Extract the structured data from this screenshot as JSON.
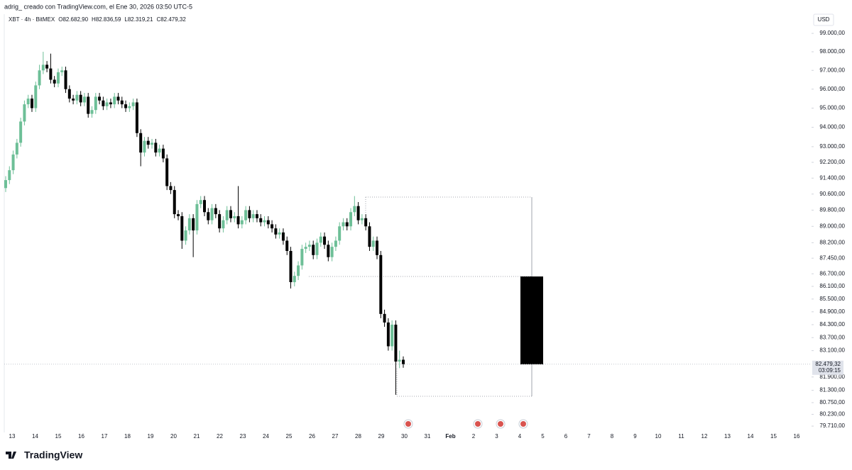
{
  "header": {
    "text": "adrig_ creado con TradingView.com, el Ene 30, 2026 03:50 UTC-5"
  },
  "footer": {
    "logo": "TradingView"
  },
  "chart_data": {
    "type": "candlestick",
    "legend": {
      "symbol": "XBT · 4h · BitMEX",
      "fields": [
        {
          "key": "O",
          "value": "82.682,90"
        },
        {
          "key": "H",
          "value": "82.836,59"
        },
        {
          "key": "L",
          "value": "82.319,21"
        },
        {
          "key": "C",
          "value": "82.479,32"
        }
      ]
    },
    "currency": "USD",
    "price_label": "82.479,32",
    "countdown": "03:09:15",
    "up_color": "#6dbf97",
    "down_color": "#000000",
    "log_scale": true,
    "ylim": [
      79370,
      100290
    ],
    "yticks": [
      {
        "value": 99000,
        "label": "99.000,00"
      },
      {
        "value": 98000,
        "label": "98.000,00"
      },
      {
        "value": 97000,
        "label": "97.000,00"
      },
      {
        "value": 96000,
        "label": "96.000,00"
      },
      {
        "value": 95000,
        "label": "95.000,00"
      },
      {
        "value": 94000,
        "label": "94.000,00"
      },
      {
        "value": 93000,
        "label": "93.000,00"
      },
      {
        "value": 92200,
        "label": "92.200,00"
      },
      {
        "value": 91400,
        "label": "91.400,00"
      },
      {
        "value": 90600,
        "label": "90.600,00"
      },
      {
        "value": 89800,
        "label": "89.800,00"
      },
      {
        "value": 89000,
        "label": "89.000,00"
      },
      {
        "value": 88200,
        "label": "88.200,00"
      },
      {
        "value": 87450,
        "label": "87.450,00"
      },
      {
        "value": 86700,
        "label": "86.700,00"
      },
      {
        "value": 86100,
        "label": "86.100,00"
      },
      {
        "value": 85500,
        "label": "85.500,00"
      },
      {
        "value": 84900,
        "label": "84.900,00"
      },
      {
        "value": 84300,
        "label": "84.300,00"
      },
      {
        "value": 83700,
        "label": "83.700,00"
      },
      {
        "value": 83100,
        "label": "83.100,00"
      },
      {
        "value": 81900,
        "label": "81.900,00"
      },
      {
        "value": 81300,
        "label": "81.300,00"
      },
      {
        "value": 80750,
        "label": "80.750,00"
      },
      {
        "value": 80230,
        "label": "80.230,00"
      },
      {
        "value": 79710,
        "label": "79.710,00"
      }
    ],
    "xticks": [
      {
        "value": "2026-01-13",
        "label": "13"
      },
      {
        "value": "2026-01-14",
        "label": "14"
      },
      {
        "value": "2026-01-15",
        "label": "15"
      },
      {
        "value": "2026-01-16",
        "label": "16"
      },
      {
        "value": "2026-01-17",
        "label": "17"
      },
      {
        "value": "2026-01-18",
        "label": "18"
      },
      {
        "value": "2026-01-19",
        "label": "19"
      },
      {
        "value": "2026-01-20",
        "label": "20"
      },
      {
        "value": "2026-01-21",
        "label": "21"
      },
      {
        "value": "2026-01-22",
        "label": "22"
      },
      {
        "value": "2026-01-23",
        "label": "23"
      },
      {
        "value": "2026-01-24",
        "label": "24"
      },
      {
        "value": "2026-01-25",
        "label": "25"
      },
      {
        "value": "2026-01-26",
        "label": "26"
      },
      {
        "value": "2026-01-27",
        "label": "27"
      },
      {
        "value": "2026-01-28",
        "label": "28"
      },
      {
        "value": "2026-01-29",
        "label": "29"
      },
      {
        "value": "2026-01-30",
        "label": "30"
      },
      {
        "value": "2026-01-31",
        "label": "31"
      },
      {
        "value": "2026-02-01",
        "label": "Feb"
      },
      {
        "value": "2026-02-02",
        "label": "2"
      },
      {
        "value": "2026-02-03",
        "label": "3"
      },
      {
        "value": "2026-02-04",
        "label": "4"
      },
      {
        "value": "2026-02-05",
        "label": "5"
      },
      {
        "value": "2026-02-06",
        "label": "6"
      },
      {
        "value": "2026-02-07",
        "label": "7"
      },
      {
        "value": "2026-02-08",
        "label": "8"
      },
      {
        "value": "2026-02-09",
        "label": "9"
      },
      {
        "value": "2026-02-10",
        "label": "10"
      },
      {
        "value": "2026-02-11",
        "label": "11"
      },
      {
        "value": "2026-02-12",
        "label": "12"
      },
      {
        "value": "2026-02-13",
        "label": "13"
      },
      {
        "value": "2026-02-14",
        "label": "14"
      },
      {
        "value": "2026-02-15",
        "label": "15"
      },
      {
        "value": "2026-02-16",
        "label": "16"
      }
    ],
    "open": [
      90900,
      91300,
      91800,
      92600,
      93200,
      94300,
      95200,
      95500,
      95000,
      96200,
      97000,
      97300,
      97100,
      96500,
      96300,
      96900,
      97000,
      96000,
      95500,
      95400,
      95700,
      95300,
      95600,
      94700,
      94900,
      95600,
      95400,
      95100,
      95300,
      95200,
      95600,
      95400,
      95200,
      95000,
      95100,
      95300,
      93700,
      92700,
      93300,
      93100,
      93200,
      92700,
      92900,
      92400,
      91000,
      90800,
      89600,
      89500,
      88300,
      88800,
      89400,
      88800,
      90100,
      90300,
      89700,
      89300,
      89900,
      89600,
      88900,
      89300,
      89800,
      89400,
      89500,
      89100,
      89300,
      89800,
      89400,
      89600,
      89400,
      89200,
      89300,
      89100,
      88900,
      88600,
      88700,
      88300,
      87800,
      86300,
      86600,
      87100,
      87900,
      88000,
      88100,
      87600,
      88200,
      88500,
      88100,
      87500,
      88000,
      88300,
      89000,
      89200,
      89000,
      89700,
      90000,
      89300,
      89400,
      89000,
      88000,
      88300,
      87600,
      84800,
      84400,
      83300,
      84300,
      82600,
      82682.9
    ],
    "high": [
      91500,
      92000,
      92800,
      93400,
      94500,
      95400,
      95700,
      95700,
      96400,
      97300,
      98000,
      97500,
      97900,
      96700,
      97100,
      97200,
      97200,
      96200,
      95700,
      95900,
      95900,
      95800,
      95800,
      95100,
      95800,
      95800,
      95600,
      95500,
      95500,
      95800,
      95800,
      95600,
      95400,
      95300,
      95500,
      95500,
      93900,
      93500,
      93500,
      93400,
      93400,
      93100,
      93100,
      92600,
      91200,
      91000,
      89800,
      89700,
      89000,
      89600,
      89600,
      90300,
      90500,
      90500,
      89900,
      90100,
      90100,
      89800,
      89500,
      90000,
      90000,
      89700,
      91000,
      89500,
      90000,
      90000,
      89800,
      89800,
      89600,
      89500,
      89500,
      89300,
      89100,
      88900,
      88900,
      88500,
      88000,
      86800,
      87300,
      88100,
      88200,
      88300,
      88300,
      88400,
      88700,
      88700,
      88300,
      88200,
      88500,
      89200,
      89400,
      89400,
      89900,
      90500,
      90200,
      89600,
      89600,
      89200,
      88500,
      88500,
      87800,
      85000,
      84600,
      84500,
      84500,
      83100,
      82836.59
    ],
    "low": [
      90700,
      91100,
      91600,
      92400,
      93000,
      94100,
      95000,
      94800,
      94800,
      96000,
      96800,
      96900,
      96300,
      96100,
      96100,
      96700,
      95800,
      95300,
      95200,
      95200,
      95100,
      95100,
      94500,
      94500,
      94700,
      95200,
      94900,
      94900,
      95000,
      95000,
      95200,
      95000,
      94800,
      94800,
      94900,
      93500,
      92000,
      92500,
      92900,
      92900,
      92500,
      92500,
      92200,
      90800,
      90600,
      89400,
      89300,
      87900,
      88100,
      88600,
      87500,
      88600,
      89900,
      89500,
      89100,
      89100,
      89400,
      88700,
      88700,
      89100,
      89200,
      89200,
      88900,
      88900,
      89100,
      89200,
      89200,
      89200,
      89000,
      89000,
      88900,
      88700,
      88400,
      88400,
      88100,
      87600,
      86000,
      86100,
      86400,
      86900,
      87700,
      87800,
      87400,
      87400,
      88000,
      87900,
      87300,
      87300,
      87800,
      88100,
      88800,
      88800,
      88800,
      89500,
      89100,
      89100,
      88800,
      87800,
      87800,
      87400,
      84600,
      84200,
      83100,
      83100,
      81100,
      82300,
      82319.21
    ],
    "close": [
      91300,
      91800,
      92600,
      93200,
      94300,
      95200,
      95500,
      95000,
      96200,
      97000,
      97300,
      97100,
      96500,
      96300,
      96900,
      97000,
      96000,
      95500,
      95400,
      95700,
      95300,
      95600,
      94700,
      94900,
      95600,
      95400,
      95100,
      95300,
      95200,
      95600,
      95400,
      95200,
      95000,
      95100,
      95300,
      93700,
      92700,
      93300,
      93100,
      93200,
      92700,
      92900,
      92400,
      91000,
      90800,
      89600,
      89500,
      88300,
      88800,
      89400,
      88800,
      90100,
      90300,
      89700,
      89300,
      89900,
      89600,
      88900,
      89300,
      89800,
      89400,
      89500,
      89100,
      89300,
      89800,
      89400,
      89600,
      89400,
      89200,
      89300,
      89100,
      88900,
      88600,
      88700,
      88300,
      87800,
      86300,
      86600,
      87100,
      87900,
      88000,
      88100,
      87600,
      88200,
      88500,
      88100,
      87500,
      88000,
      88300,
      89000,
      89200,
      89000,
      89700,
      90000,
      89300,
      89400,
      89000,
      88000,
      88300,
      87600,
      84800,
      84400,
      83300,
      84300,
      82600,
      82682.9,
      82479.32
    ]
  }
}
